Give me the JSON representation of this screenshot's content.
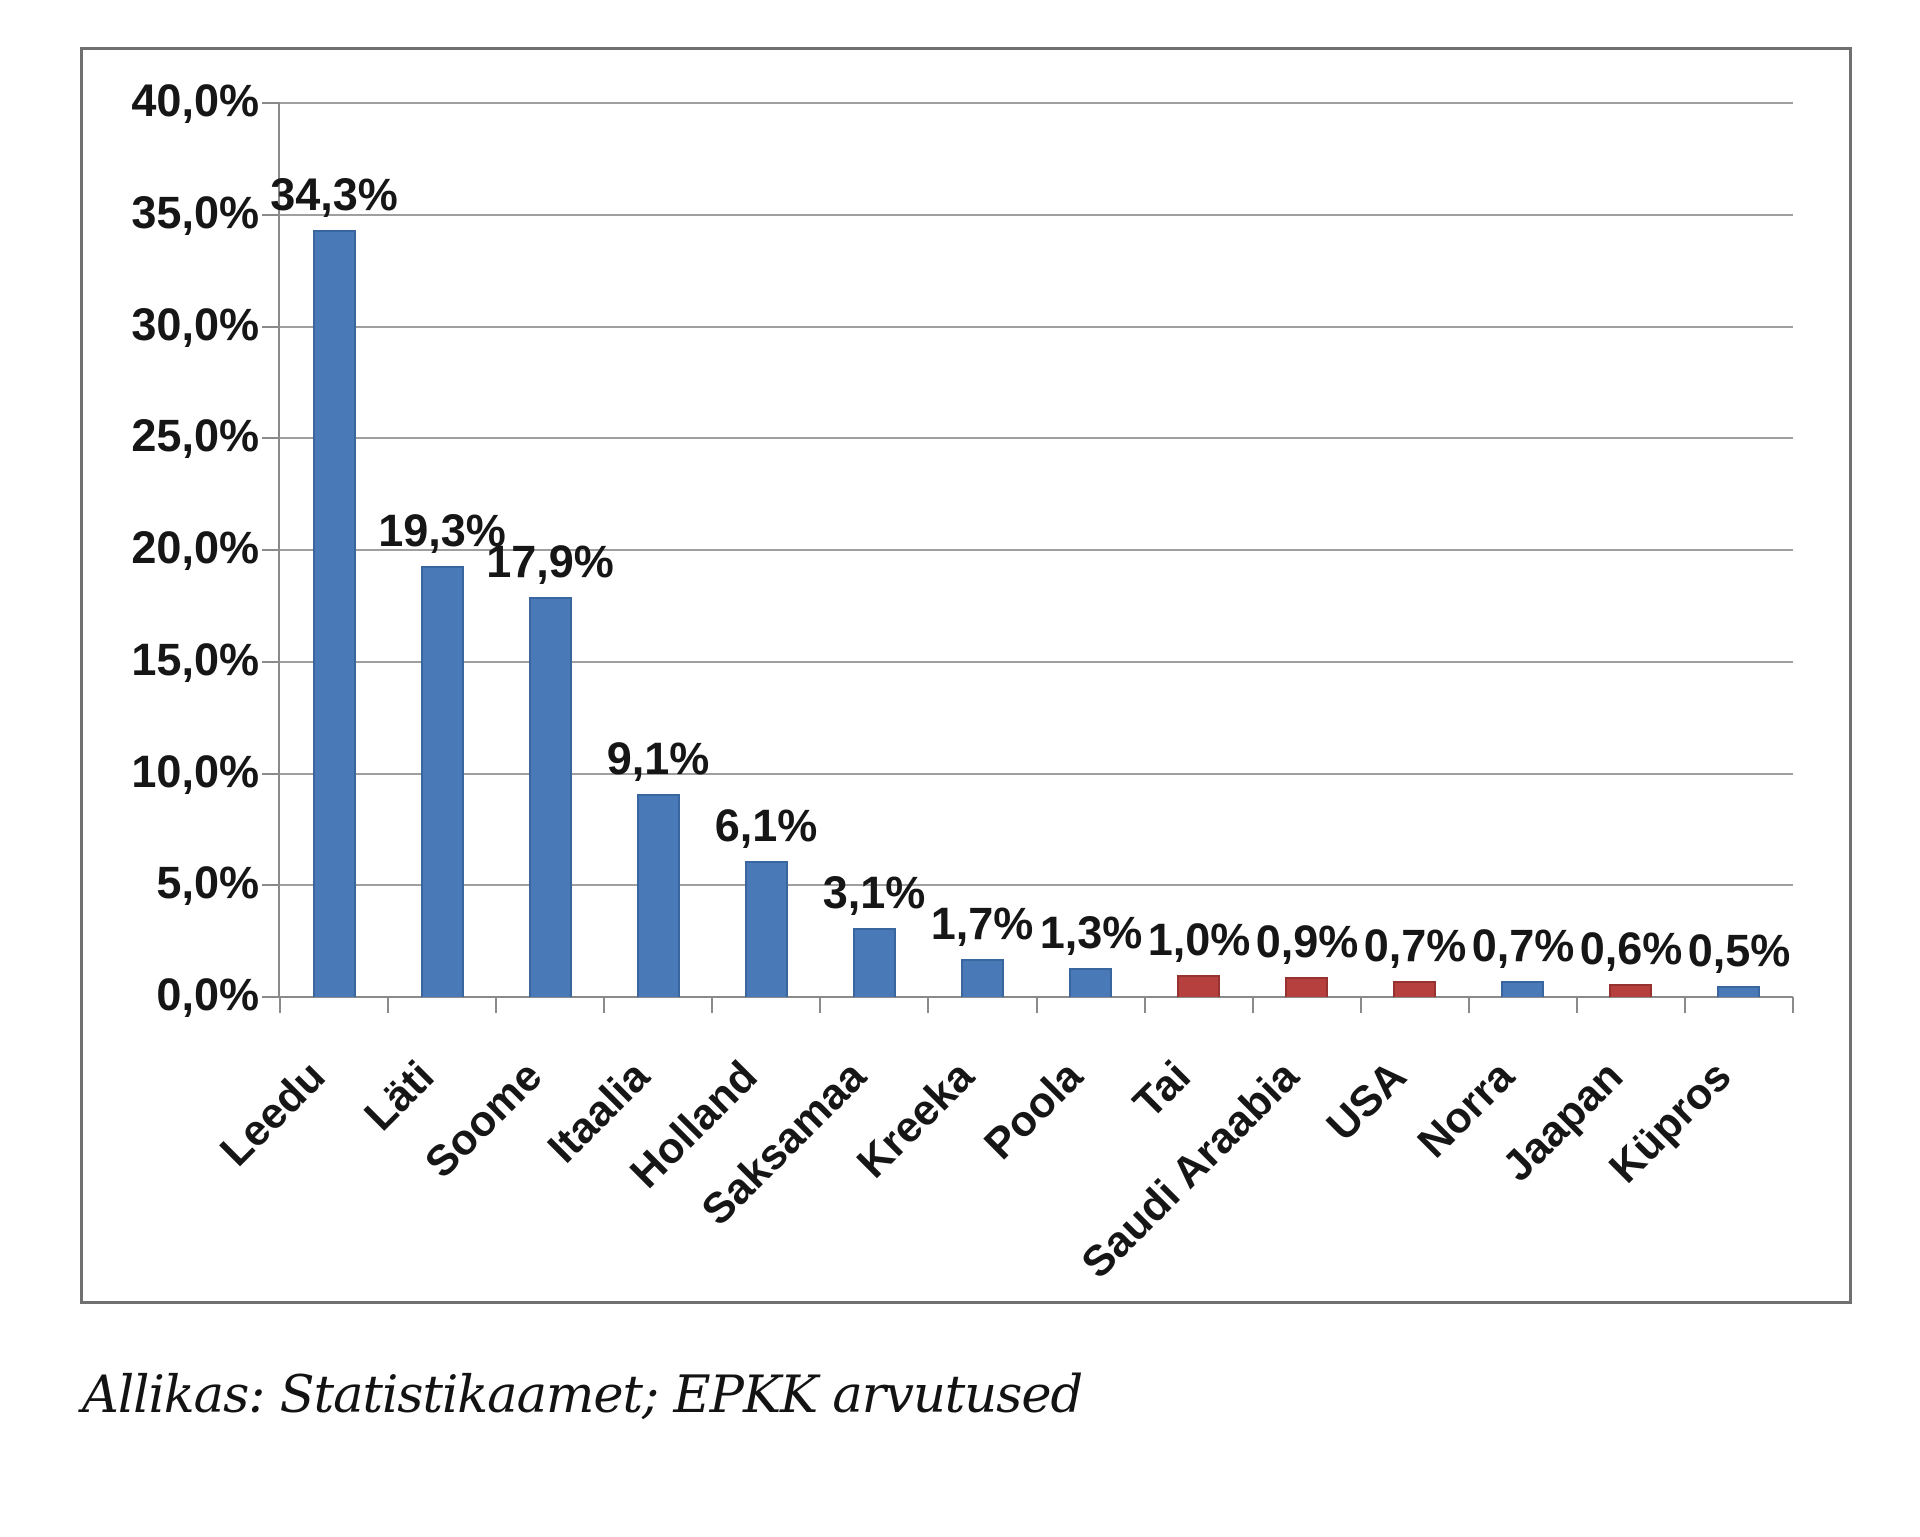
{
  "chart_data": {
    "type": "bar",
    "title": "",
    "xlabel": "",
    "ylabel": "",
    "categories": [
      "Leedu",
      "Läti",
      "Soome",
      "Itaalia",
      "Holland",
      "Saksamaa",
      "Kreeka",
      "Poola",
      "Tai",
      "Saudi Araabia",
      "USA",
      "Norra",
      "Jaapan",
      "Küpros"
    ],
    "values": [
      34.3,
      19.3,
      17.9,
      9.1,
      6.1,
      3.1,
      1.7,
      1.3,
      1.0,
      0.9,
      0.7,
      0.7,
      0.6,
      0.5
    ],
    "value_labels": [
      "34,3%",
      "19,3%",
      "17,9%",
      "9,1%",
      "6,1%",
      "3,1%",
      "1,7%",
      "1,3%",
      "1,0%",
      "0,9%",
      "0,7%",
      "0,7%",
      "0,6%",
      "0,5%"
    ],
    "bar_colors": [
      "blue",
      "blue",
      "blue",
      "blue",
      "blue",
      "blue",
      "blue",
      "blue",
      "red",
      "red",
      "red",
      "blue",
      "red",
      "blue"
    ],
    "ylim": [
      0,
      40
    ],
    "ytick_step": 5,
    "ytick_labels": [
      "40,0%",
      "35,0%",
      "30,0%",
      "25,0%",
      "20,0%",
      "15,0%",
      "10,0%",
      "5,0%",
      "0,0%"
    ],
    "grid": true,
    "legend": false,
    "x_labels_rotation_deg": -45
  },
  "colors": {
    "bar_blue": "#4a79b8",
    "bar_blue_border": "#3a66a0",
    "bar_red": "#b5403e",
    "bar_red_border": "#963331",
    "grid": "#9f9f9f",
    "axis": "#8a8a8a",
    "frame_border": "#707070",
    "text": "#161616",
    "background": "#ffffff"
  },
  "source_note": "Allikas: Statistikaamet; EPKK arvutused"
}
